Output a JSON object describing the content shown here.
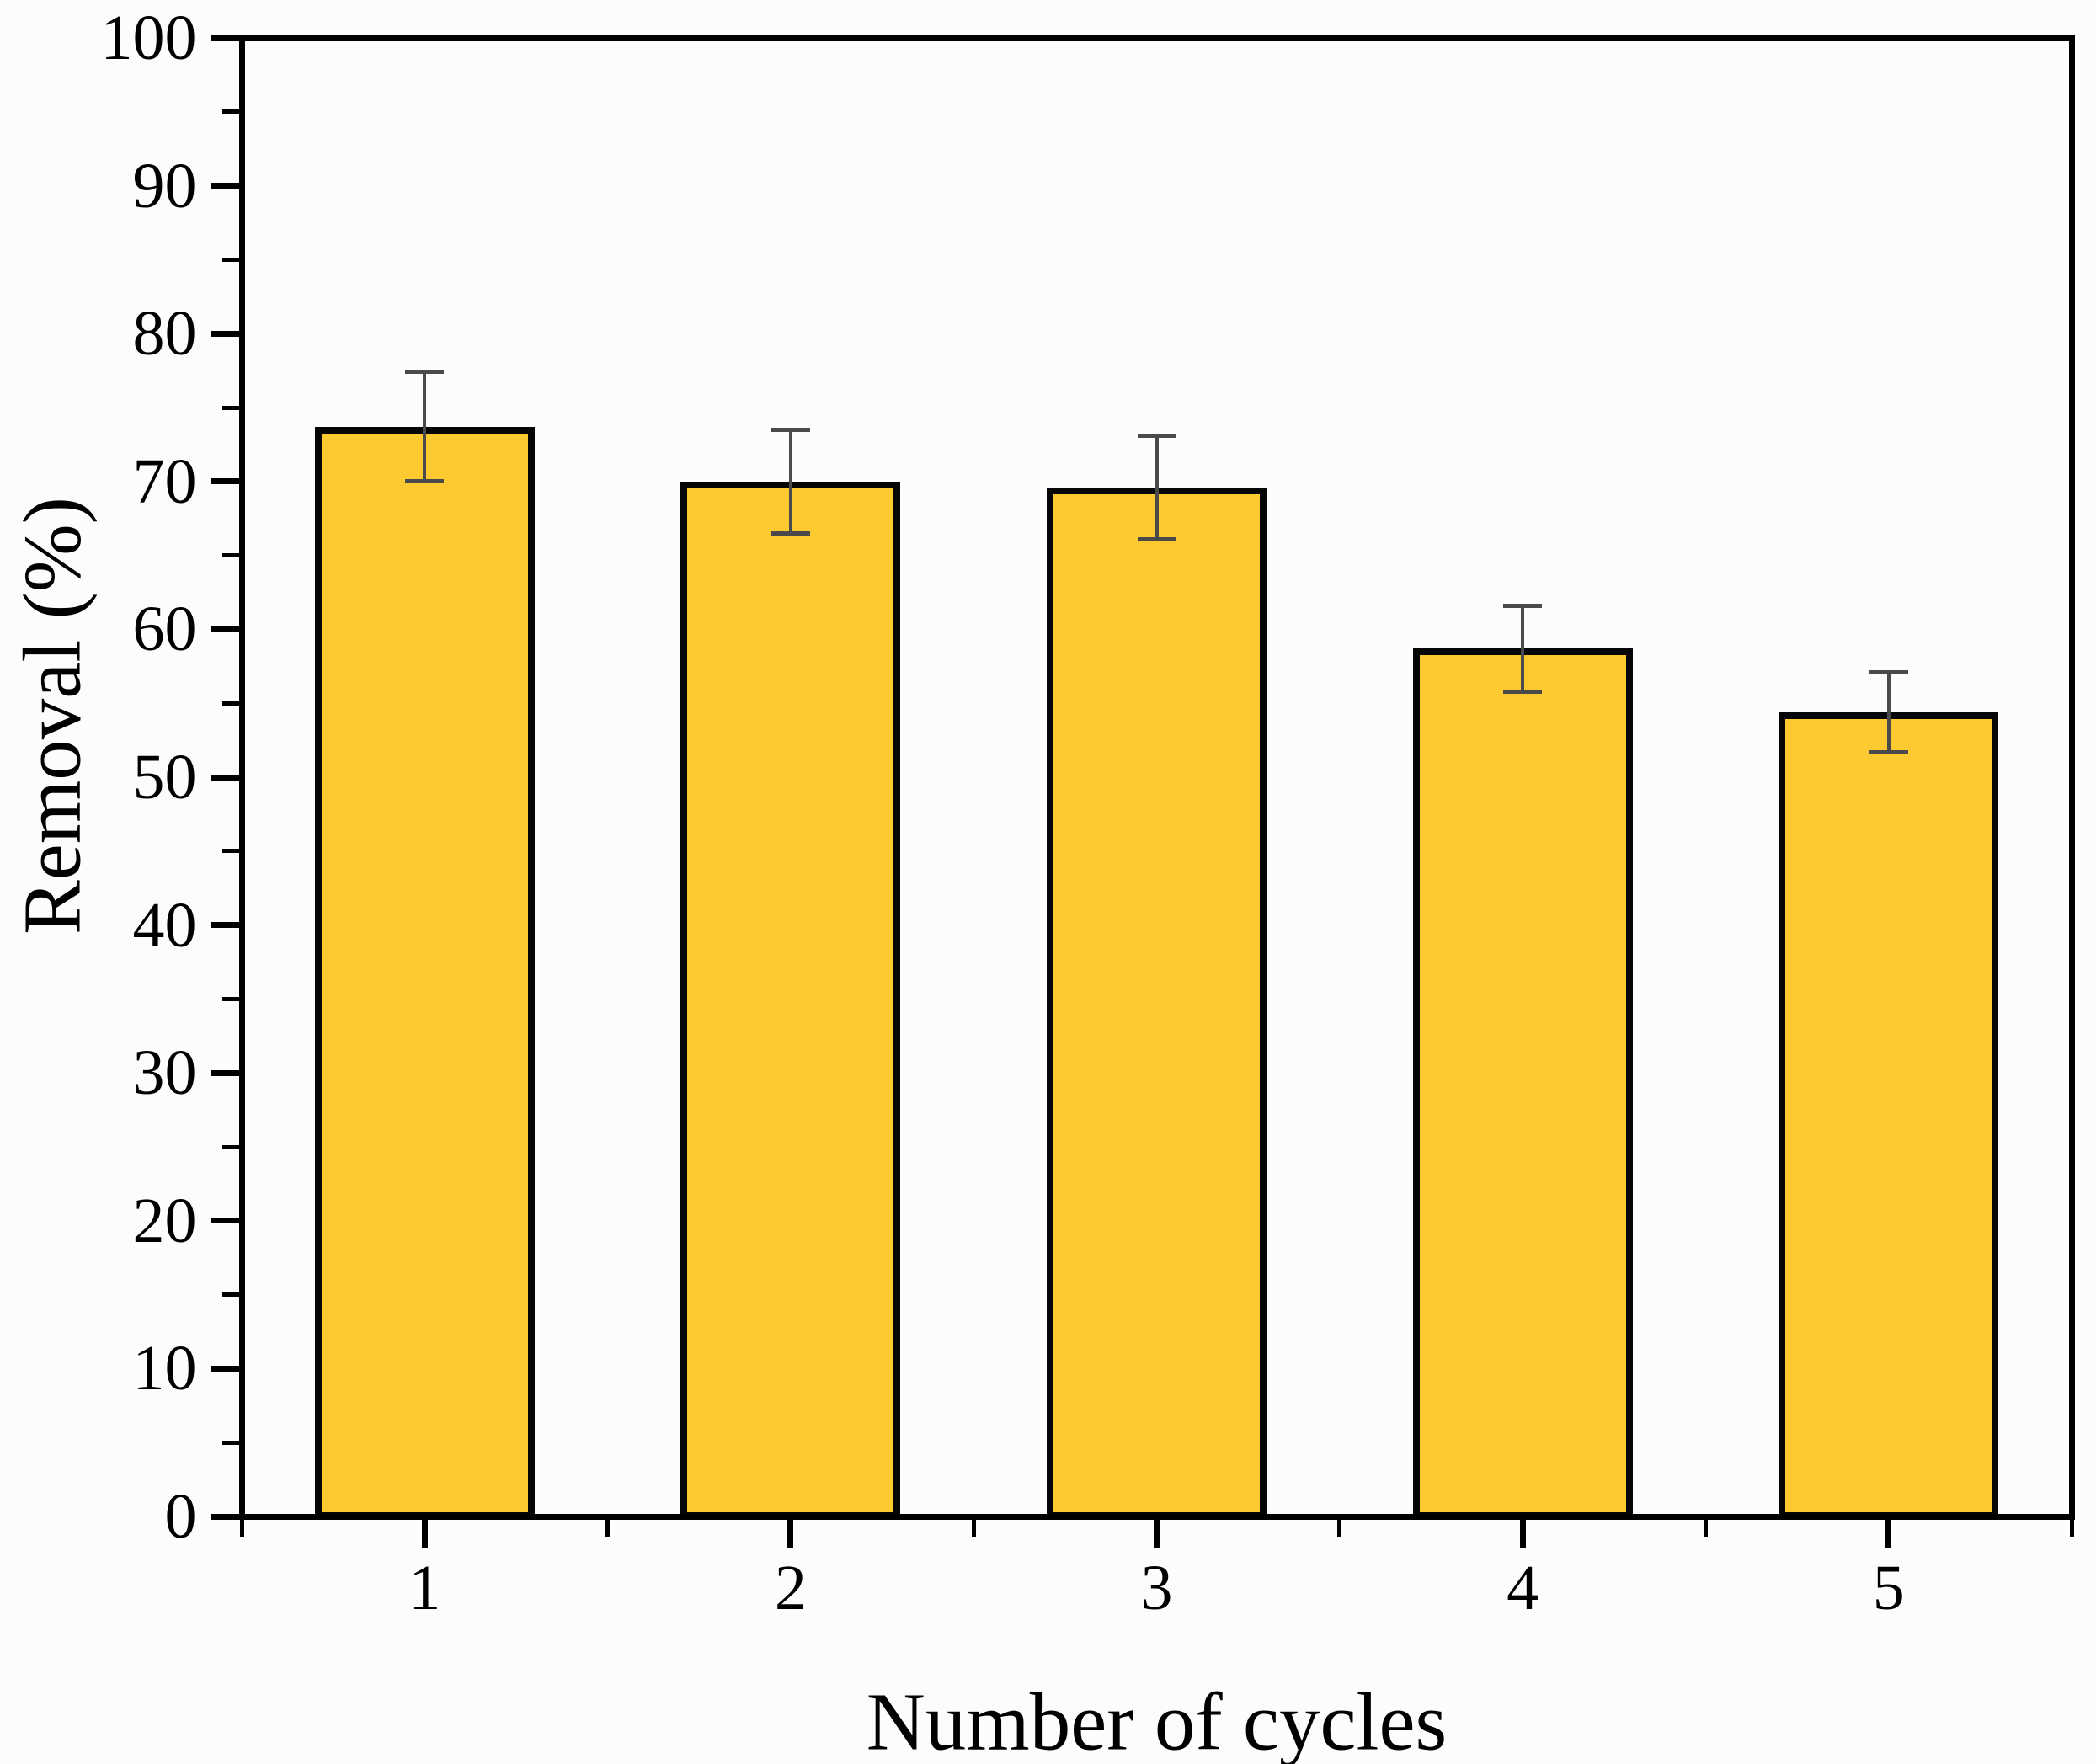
{
  "figure": {
    "background_color": "#FCFCFC",
    "plot_background_color": "#FDFDFD"
  },
  "chart_data": {
    "type": "bar",
    "title": "",
    "xlabel": "Number of cycles",
    "ylabel": "Removal (%)",
    "categories": [
      "1",
      "2",
      "3",
      "4",
      "5"
    ],
    "values": [
      73.7,
      70.0,
      69.6,
      58.7,
      54.4
    ],
    "errors": [
      3.7,
      3.5,
      3.5,
      2.9,
      2.7
    ],
    "error_style": "symmetric, caps at both ends",
    "ylim": [
      0,
      100
    ],
    "y_major_ticks": [
      0,
      10,
      20,
      30,
      40,
      50,
      60,
      70,
      80,
      90,
      100
    ],
    "y_major_tick_labels": [
      "0",
      "10",
      "20",
      "30",
      "40",
      "50",
      "60",
      "70",
      "80",
      "90",
      "100"
    ],
    "y_minor_ticks": [
      5,
      15,
      25,
      35,
      45,
      55,
      65,
      75,
      85,
      95
    ],
    "x_minor_tick_positions": [
      0.5,
      1.5,
      2.5,
      3.5,
      4.5,
      5.5
    ],
    "bar_width_fraction": 0.6,
    "grid": false,
    "legend": null,
    "frame": "full box, ticks outward on left and bottom only",
    "colors": {
      "bar_fill": "#FDC931",
      "bar_border": "#060606",
      "error_bar": "#4A4A4A",
      "axis": "#000000",
      "text": "#000000"
    }
  }
}
